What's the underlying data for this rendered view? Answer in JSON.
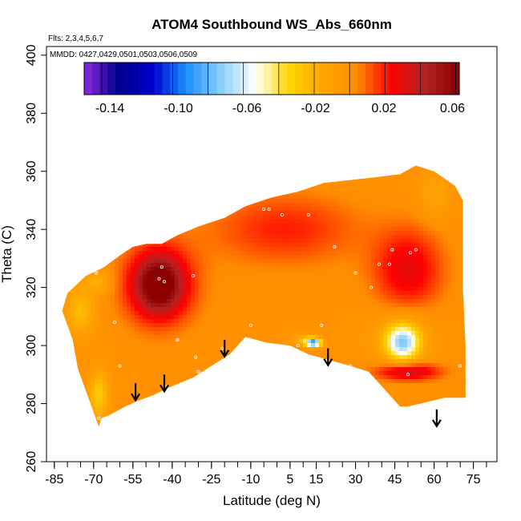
{
  "chart_data": {
    "type": "heatmap",
    "title": "ATOM4 Southbound WS_Abs_660nm",
    "flights_note": "Flts: 2,3,4,5,6,7",
    "dates_note": "MMDD: 0427,0429,0501,0503,0506,0509",
    "xlabel": "Latitude (deg N)",
    "ylabel": "Theta (C)",
    "xlim": [
      -88,
      84
    ],
    "ylim": [
      260,
      403
    ],
    "x_ticks": [
      "-85",
      "-70",
      "-55",
      "-40",
      "-25",
      "-10",
      "5",
      "15",
      "30",
      "45",
      "60",
      "75"
    ],
    "x_tick_values": [
      -85,
      -70,
      -55,
      -40,
      -25,
      -10,
      5,
      15,
      30,
      45,
      60,
      75
    ],
    "y_ticks": [
      "260",
      "280",
      "300",
      "320",
      "340",
      "360",
      "380",
      "400"
    ],
    "y_tick_values": [
      260,
      280,
      300,
      320,
      340,
      360,
      380,
      400
    ],
    "colorbar": {
      "range": [
        -0.155,
        0.064
      ],
      "tick_labels": [
        "-0.14",
        "-0.10",
        "-0.06",
        "-0.02",
        "0.02",
        "0.06"
      ],
      "tick_values": [
        -0.14,
        -0.1,
        -0.06,
        -0.02,
        0.02,
        0.06
      ],
      "colors": [
        "#8a2be2",
        "#00008b",
        "#0000cd",
        "#1e90ff",
        "#87cefa",
        "#ffffff",
        "#ffd700",
        "#ffa500",
        "#ff8c00",
        "#ff0000",
        "#b22222",
        "#8b0000"
      ]
    },
    "domain_outline": [
      [
        -80,
        318
      ],
      [
        -73,
        324
      ],
      [
        -66,
        327
      ],
      [
        -60,
        331
      ],
      [
        -55,
        334
      ],
      [
        -50,
        335
      ],
      [
        -44,
        335
      ],
      [
        -38,
        338
      ],
      [
        -30,
        341
      ],
      [
        -20,
        344
      ],
      [
        -12,
        348
      ],
      [
        -2,
        351
      ],
      [
        8,
        353
      ],
      [
        18,
        356
      ],
      [
        28,
        357
      ],
      [
        38,
        358
      ],
      [
        47,
        359
      ],
      [
        53,
        362
      ],
      [
        60,
        360
      ],
      [
        68,
        355
      ],
      [
        71,
        350
      ],
      [
        71,
        320
      ],
      [
        72,
        300
      ],
      [
        72,
        282
      ],
      [
        64,
        282
      ],
      [
        50,
        279
      ],
      [
        47,
        279
      ],
      [
        41,
        285
      ],
      [
        35,
        291
      ],
      [
        28,
        293
      ],
      [
        20,
        295
      ],
      [
        12,
        297
      ],
      [
        5,
        300
      ],
      [
        -4,
        301
      ],
      [
        -12,
        303
      ],
      [
        -18,
        297
      ],
      [
        -25,
        293
      ],
      [
        -32,
        289
      ],
      [
        -40,
        286
      ],
      [
        -47,
        283
      ],
      [
        -53,
        281
      ],
      [
        -58,
        279
      ],
      [
        -64,
        276
      ],
      [
        -67,
        275
      ],
      [
        -68,
        272
      ],
      [
        -72,
        282
      ],
      [
        -76,
        292
      ],
      [
        -78,
        302
      ],
      [
        -82,
        312
      ]
    ],
    "anomalies": [
      {
        "lat": -45,
        "theta": 321,
        "value": 0.05,
        "radius_lat": 8,
        "radius_theta": 9
      },
      {
        "lat": -45,
        "theta": 321,
        "value": 0.035,
        "radius_lat": 14,
        "radius_theta": 14
      },
      {
        "lat": 50,
        "theta": 326,
        "value": 0.03,
        "radius_lat": 13,
        "radius_theta": 14
      },
      {
        "lat": 50,
        "theta": 291,
        "value": 0.04,
        "radius_lat": 12,
        "radius_theta": 3
      },
      {
        "lat": 3,
        "theta": 340,
        "value": 0.02,
        "radius_lat": 28,
        "radius_theta": 12
      },
      {
        "lat": 48,
        "theta": 301,
        "value": -0.06,
        "radius_lat": 6,
        "radius_theta": 6
      },
      {
        "lat": 48,
        "theta": 303,
        "value": -0.02,
        "radius_lat": 12,
        "radius_theta": 9
      },
      {
        "lat": -75,
        "theta": 312,
        "value": -0.025,
        "radius_lat": 6,
        "radius_theta": 9
      },
      {
        "lat": -68,
        "theta": 283,
        "value": -0.03,
        "radius_lat": 4,
        "radius_theta": 9
      },
      {
        "lat": -68,
        "theta": 322,
        "value": -0.02,
        "radius_lat": 5,
        "radius_theta": 4
      },
      {
        "lat": 14,
        "theta": 301,
        "value": -0.09,
        "radius_lat": 3,
        "radius_theta": 1.5
      },
      {
        "lat": 10,
        "theta": 302,
        "value": -0.02,
        "radius_lat": 5,
        "radius_theta": 2
      },
      {
        "lat": 60,
        "theta": 352,
        "value": -0.015,
        "radius_lat": 6,
        "radius_theta": 8
      }
    ],
    "background_value": 0.0,
    "arrows": [
      {
        "lat": -54,
        "theta": 287
      },
      {
        "lat": -43,
        "theta": 290
      },
      {
        "lat": -20,
        "theta": 302
      },
      {
        "lat": 19.5,
        "theta": 299
      },
      {
        "lat": 61,
        "theta": 278
      }
    ],
    "sample_points": [
      [
        -69,
        325
      ],
      [
        -62,
        308
      ],
      [
        -60,
        293
      ],
      [
        -68,
        275
      ],
      [
        -45,
        323
      ],
      [
        -43,
        322
      ],
      [
        -44,
        327
      ],
      [
        -38,
        302
      ],
      [
        -32,
        324
      ],
      [
        -31,
        296
      ],
      [
        -30,
        291
      ],
      [
        -21,
        299
      ],
      [
        -10,
        307
      ],
      [
        -5,
        347
      ],
      [
        -3,
        347
      ],
      [
        2,
        345
      ],
      [
        8,
        300
      ],
      [
        12,
        345
      ],
      [
        17,
        307
      ],
      [
        22,
        334
      ],
      [
        28,
        293
      ],
      [
        30,
        325
      ],
      [
        36,
        320
      ],
      [
        39,
        328
      ],
      [
        43,
        328
      ],
      [
        44,
        333
      ],
      [
        50,
        290
      ],
      [
        51,
        332
      ],
      [
        53,
        333
      ],
      [
        70,
        293
      ],
      [
        71,
        281
      ],
      [
        -42,
        286
      ]
    ]
  }
}
